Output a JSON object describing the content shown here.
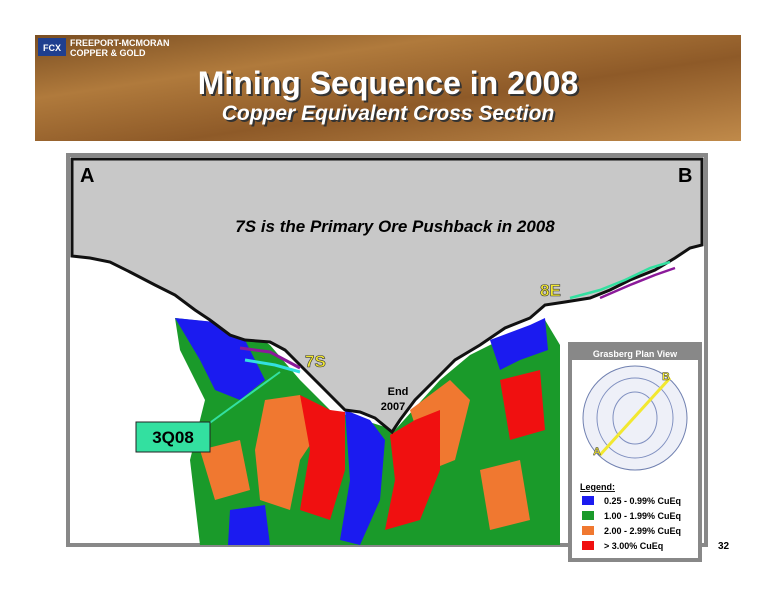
{
  "header": {
    "company_line_1": "FREEPORT-MCMORAN",
    "company_line_2": "COPPER & GOLD",
    "title": "Mining Sequence in 2008",
    "subtitle": "Copper Equivalent Cross Section"
  },
  "section": {
    "left_end": "A",
    "right_end": "B",
    "heading": "7S is the Primary Ore Pushback in 2008",
    "labels": {
      "pushback_7s": "7S",
      "pushback_8e": "8E",
      "quarter": "3Q08",
      "end_line_1": "End",
      "end_line_2": "2007"
    }
  },
  "inset": {
    "title": "Grasberg Plan View",
    "point_a": "A",
    "point_b": "B"
  },
  "legend": {
    "title": "Legend:",
    "items": [
      "0.25 - 0.99%  CuEq",
      "1.00 - 1.99%  CuEq",
      "2.00 - 2.99%  CuEq",
      "> 3.00%  CuEq"
    ]
  },
  "page_number": "32"
}
